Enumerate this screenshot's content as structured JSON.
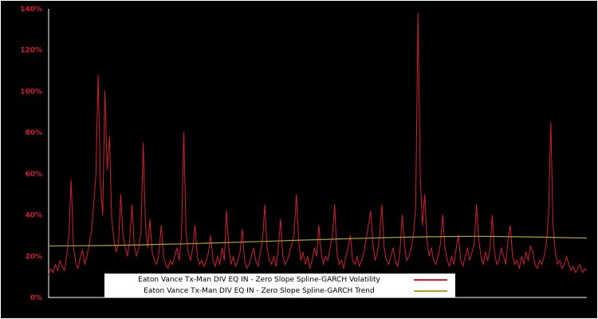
{
  "figure": {
    "background": "#000000",
    "border_color": "#ffffff"
  },
  "colors": {
    "volatility": "#d01f2f",
    "trend": "#b3a125",
    "axis": "#ffffff",
    "tick_label": "#d01f2f",
    "legend_bg": "#ffffff",
    "legend_text": "#000000"
  },
  "y_axis": {
    "tick_labels": [
      "0%",
      "20%",
      "40%",
      "60%",
      "80%",
      "100%",
      "120%",
      "140%"
    ],
    "tick_values": [
      0,
      20,
      40,
      60,
      80,
      100,
      120,
      140
    ],
    "max": 140
  },
  "chart_data": {
    "type": "line",
    "title": "",
    "xlabel": "",
    "ylabel": "",
    "ylim": [
      0,
      140
    ],
    "y_unit": "%",
    "grid": false,
    "background": "#000000",
    "legend_position": "bottom-center",
    "ytick_labels": [
      "0%",
      "20%",
      "40%",
      "60%",
      "80%",
      "100%",
      "120%",
      "140%"
    ],
    "series": [
      {
        "name": "Eaton Vance Tx-Man DIV EQ IN - Zero Slope Spline-GARCH Volatility",
        "color": "#d01f2f",
        "unit": "%",
        "values": [
          11,
          14,
          12,
          16,
          13,
          18,
          15,
          13,
          20,
          30,
          57,
          25,
          17,
          14,
          19,
          23,
          16,
          20,
          26,
          32,
          45,
          60,
          108,
          55,
          40,
          100,
          62,
          78,
          38,
          28,
          22,
          26,
          50,
          30,
          24,
          20,
          28,
          45,
          26,
          20,
          24,
          32,
          75,
          35,
          24,
          38,
          22,
          18,
          16,
          22,
          35,
          20,
          16,
          14,
          18,
          16,
          20,
          24,
          18,
          30,
          80,
          32,
          22,
          18,
          24,
          35,
          20,
          16,
          18,
          15,
          18,
          22,
          30,
          18,
          15,
          20,
          16,
          24,
          18,
          42,
          24,
          16,
          20,
          15,
          18,
          22,
          33,
          18,
          14,
          16,
          20,
          24,
          18,
          15,
          22,
          28,
          45,
          24,
          18,
          16,
          20,
          15,
          24,
          38,
          20,
          16,
          18,
          22,
          26,
          30,
          50,
          28,
          18,
          22,
          16,
          20,
          14,
          18,
          24,
          20,
          35,
          22,
          16,
          20,
          18,
          24,
          30,
          45,
          22,
          16,
          18,
          14,
          20,
          24,
          30,
          18,
          16,
          20,
          15,
          18,
          22,
          28,
          35,
          42,
          26,
          18,
          22,
          30,
          45,
          24,
          18,
          16,
          20,
          24,
          18,
          15,
          22,
          40,
          26,
          18,
          20,
          24,
          30,
          45,
          138,
          60,
          35,
          50,
          28,
          20,
          24,
          18,
          16,
          20,
          26,
          40,
          24,
          18,
          15,
          20,
          16,
          24,
          30,
          18,
          15,
          20,
          24,
          18,
          22,
          26,
          45,
          28,
          20,
          16,
          22,
          18,
          24,
          40,
          22,
          16,
          18,
          24,
          20,
          16,
          28,
          35,
          20,
          16,
          18,
          14,
          20,
          16,
          22,
          18,
          25,
          22,
          16,
          14,
          18,
          16,
          20,
          26,
          40,
          85,
          35,
          22,
          16,
          18,
          14,
          16,
          20,
          16,
          13,
          15,
          12,
          14,
          16,
          12,
          14,
          13
        ]
      },
      {
        "name": "Eaton Vance Tx-Man DIV EQ IN - Zero Slope Spline-GARCH Trend",
        "color": "#b3a125",
        "unit": "%",
        "values": [
          25.0,
          25.05,
          25.15,
          25.3,
          25.5,
          25.75,
          26.0,
          26.3,
          26.65,
          27.0,
          27.35,
          27.7,
          28.05,
          28.4,
          28.7,
          29.0,
          29.25,
          29.45,
          29.6,
          29.65,
          29.6,
          29.45,
          29.25,
          29.0,
          28.8
        ]
      }
    ]
  }
}
